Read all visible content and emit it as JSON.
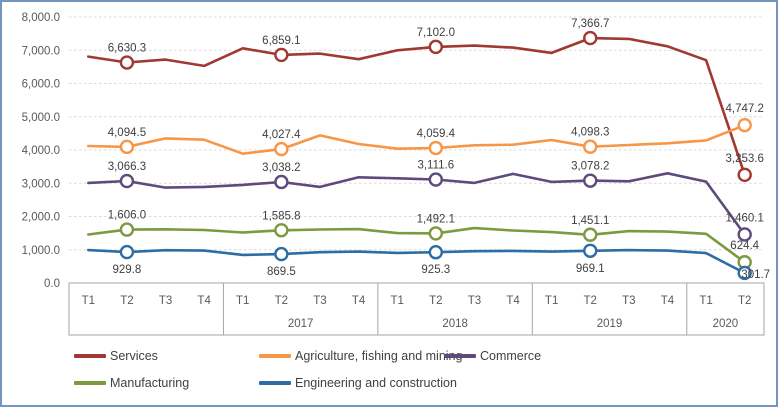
{
  "window": {
    "background": "#ffffff",
    "border_color": "#7496BD"
  },
  "chart_data": {
    "type": "line",
    "title": "",
    "xlabel": "",
    "ylabel": "",
    "ylim": [
      0,
      8000
    ],
    "ytick_step": 1000,
    "ytick_labels": [
      "0.0",
      "1,000.0",
      "2,000.0",
      "3,000.0",
      "4,000.0",
      "5,000.0",
      "6,000.0",
      "7,000.0",
      "8,000.0"
    ],
    "grid": "horizontal-dashed",
    "grid_color": "#D9D9D9",
    "axis_band_border_color": "#A6A6A6",
    "axis_text_color": "#595959",
    "data_label_color": "#404040",
    "legend_position": "bottom",
    "x_groups": [
      {
        "year": "",
        "quarters": [
          "T1",
          "T2",
          "T3",
          "T4"
        ]
      },
      {
        "year": "2017",
        "quarters": [
          "T1",
          "T2",
          "T3",
          "T4"
        ]
      },
      {
        "year": "2018",
        "quarters": [
          "T1",
          "T2",
          "T3",
          "T4"
        ]
      },
      {
        "year": "2019",
        "quarters": [
          "T1",
          "T2",
          "T3",
          "T4"
        ]
      },
      {
        "year": "2020",
        "quarters": [
          "T1",
          "T2"
        ]
      }
    ],
    "labeled_indices": [
      1,
      5,
      9,
      13,
      17
    ],
    "series": [
      {
        "name": "Services",
        "color": "#A13832",
        "label_side": "above",
        "values": [
          6810,
          6630.3,
          6720,
          6530,
          7060,
          6859.1,
          6900,
          6730,
          7000,
          7102.0,
          7140,
          7080,
          6920,
          7366.7,
          7340,
          7120,
          6700,
          3253.6
        ],
        "labels": [
          "6,630.3",
          "6,859.1",
          "7,102.0",
          "7,366.7",
          "3,253.6"
        ]
      },
      {
        "name": "Agriculture, fishing and mining",
        "color": "#F79646",
        "label_side": "above",
        "values": [
          4120,
          4094.5,
          4350,
          4310,
          3890,
          4027.4,
          4440,
          4180,
          4040,
          4059.4,
          4140,
          4160,
          4300,
          4098.3,
          4150,
          4200,
          4290,
          4747.2
        ],
        "labels": [
          "4,094.5",
          "4,027.4",
          "4,059.4",
          "4,098.3",
          "4,747.2"
        ]
      },
      {
        "name": "Commerce",
        "color": "#5E4A7D",
        "label_side": "above",
        "values": [
          3010,
          3066.3,
          2870,
          2890,
          2950,
          3038.2,
          2890,
          3180,
          3150,
          3111.6,
          3010,
          3280,
          3040,
          3078.2,
          3060,
          3300,
          3050,
          1460.1
        ],
        "labels": [
          "3,066.3",
          "3,038.2",
          "3,111.6",
          "3,078.2",
          "1,460.1"
        ]
      },
      {
        "name": "Manufacturing",
        "color": "#7C9A3F",
        "label_side": "above",
        "values": [
          1460,
          1606.0,
          1615,
          1595,
          1520,
          1585.8,
          1610,
          1620,
          1500,
          1492.1,
          1650,
          1580,
          1530,
          1451.1,
          1560,
          1545,
          1480,
          624.4
        ],
        "labels": [
          "1,606.0",
          "1,585.8",
          "1,492.1",
          "1,451.1",
          "624.4"
        ]
      },
      {
        "name": "Engineering and construction",
        "color": "#2E6DA3",
        "label_side": "below",
        "values": [
          990,
          929.8,
          985,
          975,
          845,
          869.5,
          925,
          945,
          905,
          925.3,
          955,
          965,
          945,
          969.1,
          990,
          975,
          900,
          301.7
        ],
        "labels": [
          "929.8",
          "869.5",
          "925.3",
          "969.1",
          "301.7"
        ]
      }
    ]
  },
  "legend": {
    "items": [
      {
        "label": "Services",
        "color": "#A13832"
      },
      {
        "label": "Agriculture, fishing and mining",
        "color": "#F79646"
      },
      {
        "label": "Commerce",
        "color": "#5E4A7D"
      },
      {
        "label": "Manufacturing",
        "color": "#7C9A3F"
      },
      {
        "label": "Engineering and construction",
        "color": "#2E6DA3"
      }
    ]
  }
}
